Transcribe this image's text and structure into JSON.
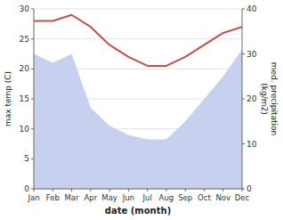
{
  "chart_data": {
    "type": "line",
    "categories": [
      "Jan",
      "Feb",
      "Mar",
      "Apr",
      "May",
      "Jun",
      "Jul",
      "Aug",
      "Sep",
      "Oct",
      "Nov",
      "Dec"
    ],
    "series": [
      {
        "type": "area",
        "axis": "y2",
        "color": "#c8d0f0",
        "values": [
          30,
          28,
          30,
          18,
          14,
          12,
          11,
          11,
          15,
          20,
          25,
          31
        ]
      },
      {
        "type": "line",
        "color": "#c0504d",
        "values": [
          28,
          28,
          29,
          27,
          24,
          22,
          20.5,
          20.5,
          22,
          24,
          26,
          27
        ]
      }
    ],
    "xlabel": "date (month)",
    "ylabel": "max temp (C)",
    "y2label": "med. precipitation\n(kg/m2)",
    "ylim": [
      0,
      30
    ],
    "yticks": [
      0,
      5,
      10,
      15,
      20,
      25,
      30
    ],
    "y2lim": [
      0,
      40
    ],
    "y2ticks": [
      0,
      10,
      20,
      30,
      40
    ],
    "grid": true
  }
}
